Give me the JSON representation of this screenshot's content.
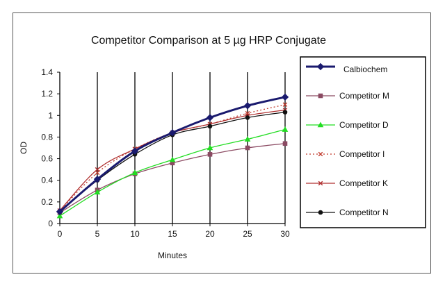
{
  "chart_data": {
    "type": "line",
    "title": "Competitor Comparison at 5 µg HRP Conjugate",
    "xlabel": "Minutes",
    "ylabel": "OD",
    "x": [
      0,
      5,
      10,
      15,
      20,
      25,
      30
    ],
    "xlim": [
      0,
      30
    ],
    "ylim": [
      0,
      1.4
    ],
    "x_ticks": [
      "0",
      "5",
      "10",
      "15",
      "20",
      "25",
      "30"
    ],
    "y_ticks": [
      "0",
      "0.2",
      "0.4",
      "0.6",
      "0.8",
      "1",
      "1.2",
      "1.4"
    ],
    "grid": "vertical",
    "legend_position": "right",
    "series": [
      {
        "name": "Calbiochem",
        "values": [
          0.11,
          0.41,
          0.67,
          0.84,
          0.98,
          1.09,
          1.17
        ],
        "color": "#1a1a6e",
        "marker": "diamond",
        "dash": "solid",
        "width": 3
      },
      {
        "name": "Competitor M",
        "values": [
          0.1,
          0.31,
          0.46,
          0.56,
          0.64,
          0.7,
          0.74
        ],
        "color": "#8b4a62",
        "marker": "square",
        "dash": "solid",
        "width": 1.3
      },
      {
        "name": "Competitor D",
        "values": [
          0.07,
          0.29,
          0.47,
          0.59,
          0.7,
          0.78,
          0.87
        ],
        "color": "#22dd22",
        "marker": "triangle",
        "dash": "solid",
        "width": 1.3
      },
      {
        "name": "Competitor I",
        "values": [
          0.12,
          0.47,
          0.69,
          0.84,
          0.92,
          1.02,
          1.1
        ],
        "color": "#c0392b",
        "marker": "x",
        "dash": "dotted",
        "width": 1.3
      },
      {
        "name": "Competitor K",
        "values": [
          0.12,
          0.5,
          0.69,
          0.84,
          0.92,
          1.0,
          1.05
        ],
        "color": "#b03030",
        "marker": "x",
        "dash": "solid",
        "width": 1.3
      },
      {
        "name": "Competitor N",
        "values": [
          0.11,
          0.4,
          0.64,
          0.82,
          0.9,
          0.98,
          1.03
        ],
        "color": "#111111",
        "marker": "circle",
        "dash": "solid",
        "width": 1.3
      }
    ]
  }
}
